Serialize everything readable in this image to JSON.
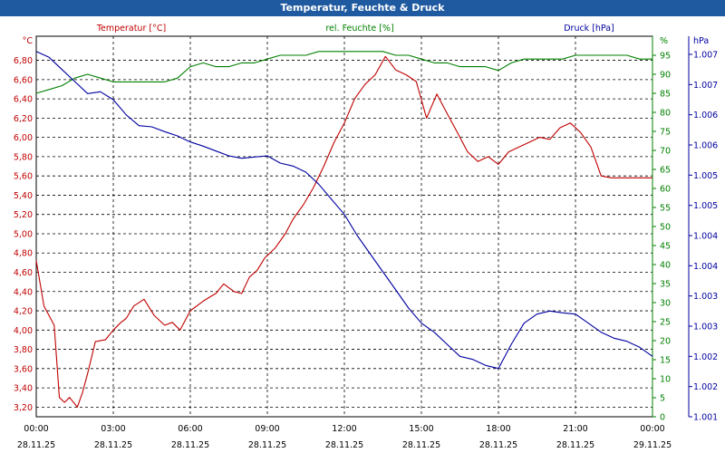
{
  "window": {
    "title": "Temperatur, Feuchte & Druck"
  },
  "chart_data": {
    "type": "line",
    "title": "Temperatur, Feuchte & Druck",
    "colors": {
      "temperature": "#c00000",
      "humidity": "#008000",
      "pressure": "#0000a0",
      "grid": "#000000"
    },
    "axes": {
      "temperature": {
        "unit": "°C",
        "label": "Temperatur [°C]",
        "ylim": [
          3.1,
          7.05
        ],
        "ticks": [
          "6,80",
          "6,60",
          "6,40",
          "6,20",
          "6,00",
          "5,80",
          "5,60",
          "5,40",
          "5,20",
          "5,00",
          "4,80",
          "4,60",
          "4,40",
          "4,20",
          "4,00",
          "3,80",
          "3,60",
          "3,40",
          "3,20"
        ],
        "tick_values": [
          6.8,
          6.6,
          6.4,
          6.2,
          6.0,
          5.8,
          5.6,
          5.4,
          5.2,
          5.0,
          4.8,
          4.6,
          4.4,
          4.2,
          4.0,
          3.8,
          3.6,
          3.4,
          3.2
        ]
      },
      "humidity": {
        "unit": "%",
        "label": "rel. Feuchte [%]",
        "ylim": [
          0,
          100
        ],
        "ticks": [
          "95",
          "90",
          "85",
          "80",
          "75",
          "70",
          "65",
          "60",
          "55",
          "50",
          "45",
          "40",
          "35",
          "30",
          "25",
          "20",
          "15",
          "10",
          "5",
          "0"
        ],
        "tick_values": [
          95,
          90,
          85,
          80,
          75,
          70,
          65,
          60,
          55,
          50,
          45,
          40,
          35,
          30,
          25,
          20,
          15,
          10,
          5,
          0
        ]
      },
      "pressure": {
        "unit": "hPa",
        "label": "Druck [hPa]",
        "ylim": [
          1001.0,
          1007.3
        ],
        "ticks": [
          "1.007",
          "1.007",
          "1.006",
          "1.006",
          "1.005",
          "1.005",
          "1.004",
          "1.004",
          "1.003",
          "1.003",
          "1.002",
          "1.002",
          "1.001"
        ],
        "tick_values": [
          1007.0,
          1006.5,
          1006.0,
          1005.5,
          1005.0,
          1004.5,
          1004.0,
          1003.5,
          1003.0,
          1002.5,
          1002.0,
          1001.5,
          1001.0
        ]
      }
    },
    "x_ticks": [
      {
        "time": "00:00",
        "date": "28.11.25",
        "hour": 0
      },
      {
        "time": "03:00",
        "date": "28.11.25",
        "hour": 3
      },
      {
        "time": "06:00",
        "date": "28.11.25",
        "hour": 6
      },
      {
        "time": "09:00",
        "date": "28.11.25",
        "hour": 9
      },
      {
        "time": "12:00",
        "date": "28.11.25",
        "hour": 12
      },
      {
        "time": "15:00",
        "date": "28.11.25",
        "hour": 15
      },
      {
        "time": "18:00",
        "date": "28.11.25",
        "hour": 18
      },
      {
        "time": "21:00",
        "date": "28.11.25",
        "hour": 21
      },
      {
        "time": "00:00",
        "date": "29.11.25",
        "hour": 24
      }
    ],
    "xlim": [
      0,
      24
    ],
    "grid": true,
    "series": [
      {
        "name": "Temperatur [°C]",
        "axis": "temperature",
        "color": "#c00000",
        "x": [
          0,
          0.3,
          0.7,
          0.9,
          1.1,
          1.3,
          1.6,
          1.8,
          2.0,
          2.3,
          2.7,
          3.0,
          3.3,
          3.5,
          3.8,
          4.2,
          4.6,
          5.0,
          5.3,
          5.6,
          6.0,
          6.5,
          6.8,
          7.0,
          7.3,
          7.7,
          8.0,
          8.3,
          8.6,
          8.9,
          9.3,
          9.7,
          10.0,
          10.4,
          10.8,
          11.2,
          11.6,
          12.0,
          12.4,
          12.8,
          13.2,
          13.6,
          14.0,
          14.4,
          14.8,
          15.2,
          15.6,
          16.0,
          16.4,
          16.8,
          17.2,
          17.6,
          18.0,
          18.4,
          18.8,
          19.2,
          19.6,
          20.0,
          20.4,
          20.8,
          21.2,
          21.6,
          22.0,
          22.4,
          22.8,
          23.2,
          23.6,
          24.0
        ],
        "values": [
          4.72,
          4.25,
          4.05,
          3.3,
          3.25,
          3.3,
          3.2,
          3.35,
          3.55,
          3.88,
          3.9,
          4.0,
          4.08,
          4.12,
          4.25,
          4.32,
          4.15,
          4.05,
          4.08,
          4.0,
          4.2,
          4.3,
          4.35,
          4.38,
          4.48,
          4.4,
          4.38,
          4.55,
          4.62,
          4.75,
          4.85,
          5.0,
          5.15,
          5.3,
          5.48,
          5.7,
          5.95,
          6.15,
          6.4,
          6.55,
          6.65,
          6.84,
          6.7,
          6.65,
          6.58,
          6.2,
          6.45,
          6.25,
          6.05,
          5.85,
          5.75,
          5.8,
          5.72,
          5.85,
          5.9,
          5.95,
          6.0,
          5.98,
          6.1,
          6.15,
          6.05,
          5.9,
          5.6,
          5.58,
          5.58,
          5.58,
          5.58,
          5.58
        ]
      },
      {
        "name": "rel. Feuchte [%]",
        "axis": "humidity",
        "color": "#008000",
        "x": [
          0,
          0.5,
          1.0,
          1.5,
          2.0,
          2.5,
          3.0,
          3.5,
          4.0,
          4.5,
          5.0,
          5.5,
          6.0,
          6.5,
          7.0,
          7.5,
          8.0,
          8.5,
          9.0,
          9.5,
          10.0,
          10.5,
          11.0,
          11.5,
          12.0,
          12.5,
          13.0,
          13.5,
          14.0,
          14.5,
          15.0,
          15.5,
          16.0,
          16.5,
          17.0,
          17.5,
          18.0,
          18.5,
          19.0,
          19.5,
          20.0,
          20.5,
          21.0,
          21.5,
          22.0,
          22.5,
          23.0,
          23.5,
          24.0
        ],
        "values": [
          85,
          86,
          87,
          89,
          90,
          89,
          88,
          88,
          88,
          88,
          88,
          89,
          92,
          93,
          92,
          92,
          93,
          93,
          94,
          95,
          95,
          95,
          96,
          96,
          96,
          96,
          96,
          96,
          95,
          95,
          94,
          93,
          93,
          92,
          92,
          92,
          91,
          93,
          94,
          94,
          94,
          94,
          95,
          95,
          95,
          95,
          95,
          94,
          94
        ]
      },
      {
        "name": "Druck [hPa]",
        "axis": "pressure",
        "color": "#0000a0",
        "x": [
          0,
          0.5,
          1.0,
          1.5,
          2.0,
          2.5,
          3.0,
          3.5,
          4.0,
          4.5,
          5.0,
          5.5,
          6.0,
          6.5,
          7.0,
          7.5,
          8.0,
          8.5,
          9.0,
          9.5,
          10.0,
          10.5,
          11.0,
          11.5,
          12.0,
          12.5,
          13.0,
          13.5,
          14.0,
          14.5,
          15.0,
          15.5,
          16.0,
          16.5,
          17.0,
          17.5,
          18.0,
          18.5,
          19.0,
          19.5,
          20.0,
          20.5,
          21.0,
          21.5,
          22.0,
          22.5,
          23.0,
          23.5,
          24.0
        ],
        "values": [
          1007.05,
          1006.95,
          1006.75,
          1006.55,
          1006.35,
          1006.38,
          1006.25,
          1006.0,
          1005.82,
          1005.8,
          1005.72,
          1005.65,
          1005.55,
          1005.48,
          1005.4,
          1005.32,
          1005.28,
          1005.3,
          1005.32,
          1005.2,
          1005.15,
          1005.05,
          1004.85,
          1004.6,
          1004.35,
          1004.0,
          1003.7,
          1003.4,
          1003.1,
          1002.8,
          1002.55,
          1002.4,
          1002.2,
          1002.0,
          1001.95,
          1001.85,
          1001.8,
          1002.2,
          1002.55,
          1002.7,
          1002.75,
          1002.72,
          1002.7,
          1002.55,
          1002.4,
          1002.3,
          1002.25,
          1002.15,
          1002.0
        ]
      }
    ]
  }
}
